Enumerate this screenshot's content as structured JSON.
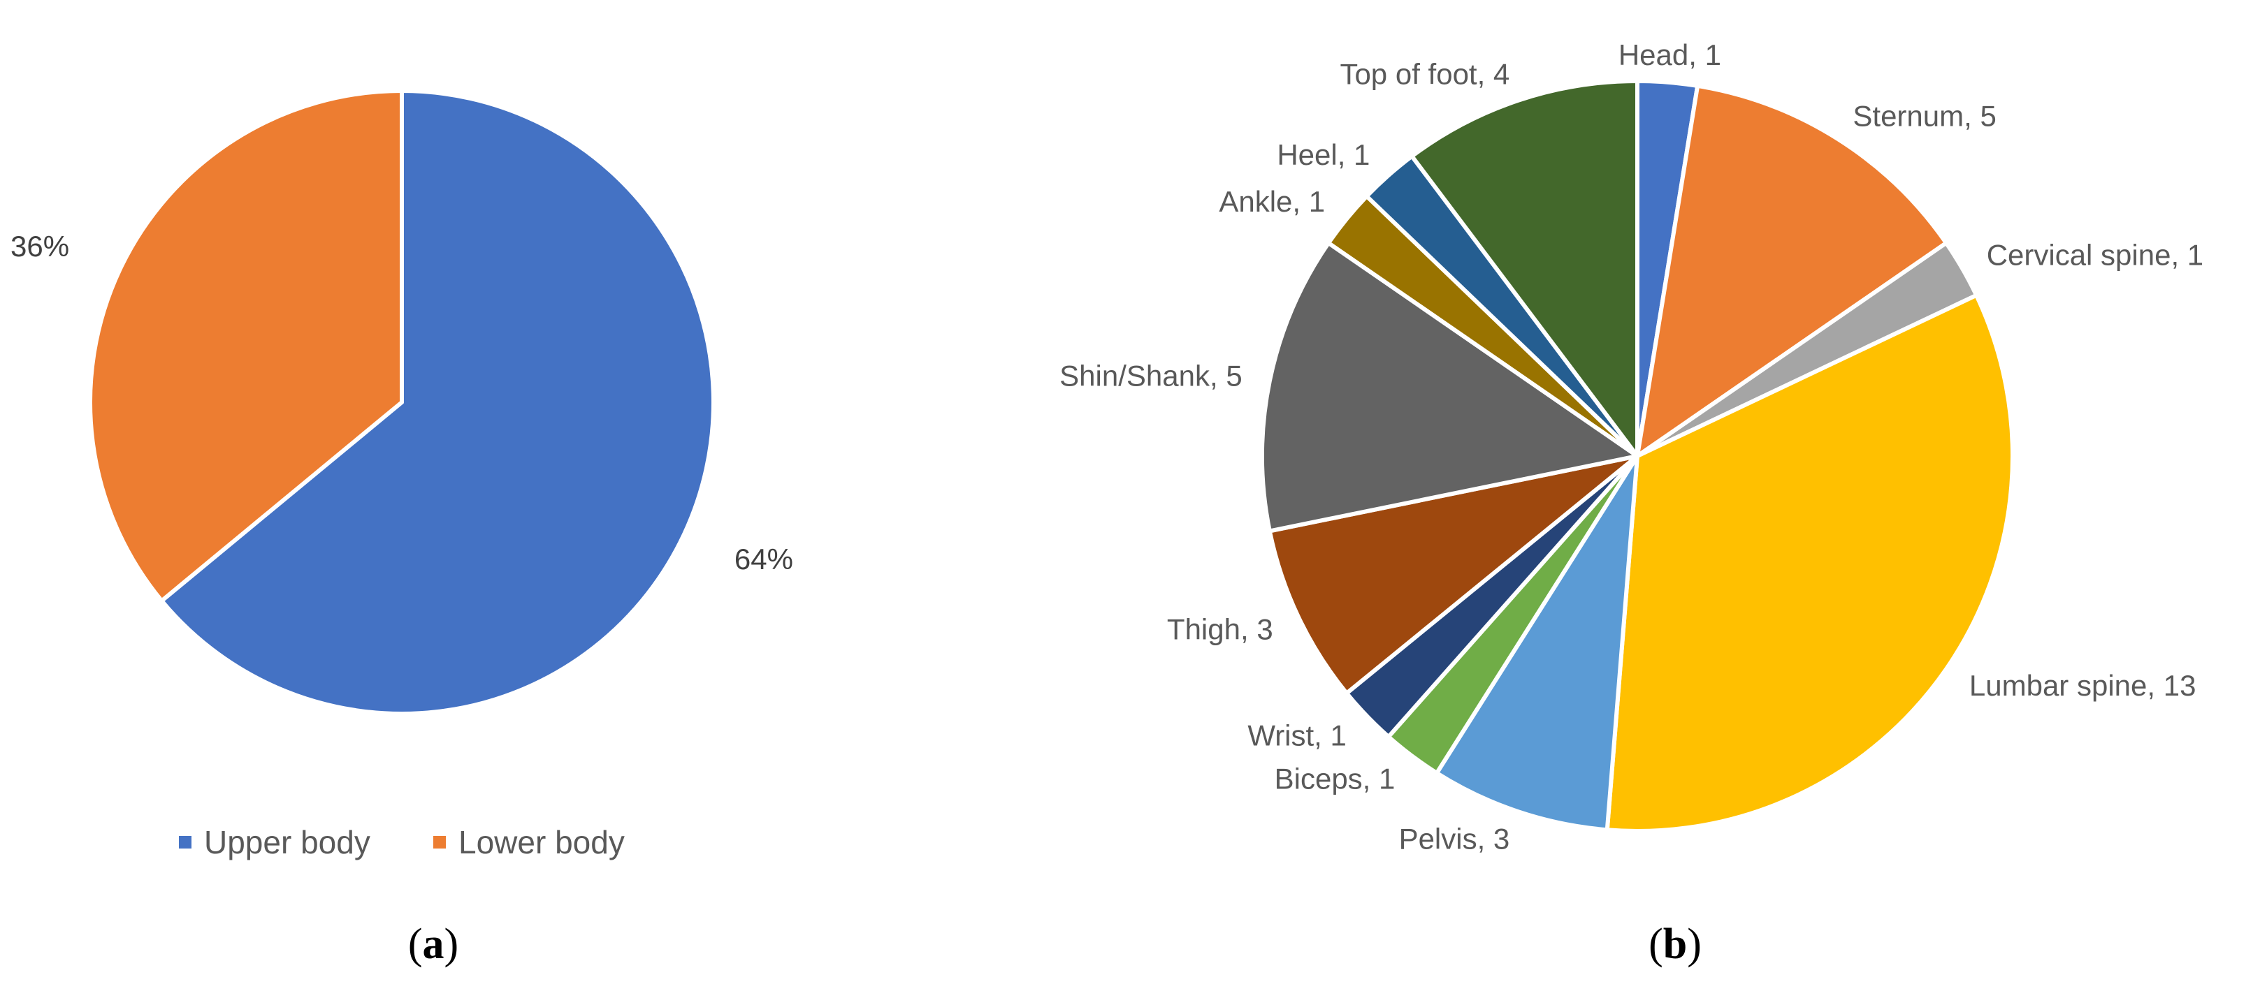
{
  "chart_data": [
    {
      "type": "pie",
      "caption": {
        "open": "(",
        "letter": "a",
        "close": ")"
      },
      "categories": [
        "Upper body",
        "Lower body"
      ],
      "values": [
        64,
        36
      ],
      "labels": [
        "64%",
        "36%"
      ],
      "colors": [
        "#4472C4",
        "#ED7D31"
      ],
      "legend": {
        "position": "bottom",
        "entries": [
          "Upper body",
          "Lower body"
        ]
      }
    },
    {
      "type": "pie",
      "caption": {
        "open": "(",
        "letter": "b",
        "close": ")"
      },
      "categories": [
        "Head",
        "Sternum",
        "Cervical spine",
        "Lumbar spine",
        "Pelvis",
        "Biceps",
        "Wrist",
        "Thigh",
        "Shin/Shank",
        "Ankle",
        "Heel",
        "Top of foot"
      ],
      "values": [
        1,
        5,
        1,
        13,
        3,
        1,
        1,
        3,
        5,
        1,
        1,
        4
      ],
      "labels": [
        "Head, 1",
        "Sternum, 5",
        "Cervical spine, 1",
        "Lumbar spine, 13",
        "Pelvis, 3",
        "Biceps, 1",
        "Wrist, 1",
        "Thigh, 3",
        "Shin/Shank, 5",
        "Ankle, 1",
        "Heel, 1",
        "Top of foot, 4"
      ],
      "colors": [
        "#4472C4",
        "#ED7D31",
        "#A5A5A5",
        "#FFC000",
        "#5B9BD5",
        "#70AD47",
        "#264478",
        "#9E480E",
        "#636363",
        "#997300",
        "#255E91",
        "#43682B"
      ],
      "legend": {
        "position": "none"
      }
    }
  ]
}
